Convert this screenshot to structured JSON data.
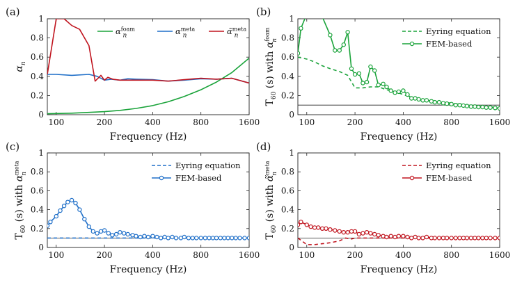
{
  "chart_data": [
    {
      "panel": "(a)",
      "type": "line",
      "xlabel": "Frequency (Hz)",
      "ylabel": {
        "base": "α",
        "sub": "n"
      },
      "xscale": "log",
      "xlim": [
        88,
        1600
      ],
      "ylim": [
        0,
        1
      ],
      "xticks": [
        {
          "v": 100,
          "label": "100"
        },
        {
          "v": 200,
          "label": "200"
        },
        {
          "v": 400,
          "label": "400"
        },
        {
          "v": 800,
          "label": "800"
        },
        {
          "v": 1600,
          "label": "1600"
        }
      ],
      "yticks": [
        {
          "v": 0,
          "label": "0"
        },
        {
          "v": 0.2,
          "label": "0.2"
        },
        {
          "v": 0.4,
          "label": "0.4"
        },
        {
          "v": 0.6,
          "label": "0.6"
        },
        {
          "v": 0.8,
          "label": "0.8"
        },
        {
          "v": 1,
          "label": "1"
        }
      ],
      "legend_position": "top",
      "series": [
        {
          "name": "alpha-foam",
          "label": {
            "base": "α",
            "sup": "foam",
            "sub": "n"
          },
          "color": "#1aa33a",
          "dash": false,
          "markers": false,
          "x": [
            88,
            100,
            125,
            160,
            200,
            250,
            315,
            400,
            500,
            630,
            800,
            1000,
            1250,
            1600
          ],
          "y": [
            0.01,
            0.012,
            0.016,
            0.024,
            0.032,
            0.045,
            0.065,
            0.095,
            0.135,
            0.19,
            0.26,
            0.34,
            0.44,
            0.59
          ]
        },
        {
          "name": "alpha-meta",
          "label": {
            "base": "α",
            "sup": "meta",
            "sub": "n"
          },
          "color": "#1f6fc8",
          "dash": false,
          "markers": false,
          "x": [
            88,
            100,
            125,
            160,
            180,
            200,
            220,
            250,
            280,
            315,
            400,
            500,
            630,
            800,
            1000,
            1250,
            1600
          ],
          "y": [
            0.42,
            0.42,
            0.41,
            0.42,
            0.4,
            0.36,
            0.37,
            0.36,
            0.375,
            0.37,
            0.365,
            0.35,
            0.36,
            0.375,
            0.37,
            0.38,
            0.33
          ]
        },
        {
          "name": "alpha-tilde-meta",
          "label": {
            "base": "α̃",
            "sup": "meta",
            "sub": "n"
          },
          "color": "#c0141e",
          "dash": false,
          "markers": false,
          "x": [
            88,
            100,
            112,
            125,
            140,
            160,
            175,
            190,
            200,
            210,
            225,
            250,
            280,
            315,
            400,
            500,
            630,
            800,
            1000,
            1250,
            1600
          ],
          "y": [
            0.42,
            1.0,
            1.0,
            0.93,
            0.89,
            0.72,
            0.35,
            0.41,
            0.36,
            0.39,
            0.37,
            0.36,
            0.36,
            0.36,
            0.36,
            0.35,
            0.365,
            0.38,
            0.37,
            0.38,
            0.33
          ]
        }
      ]
    },
    {
      "panel": "(b)",
      "type": "line",
      "xlabel": "Frequency (Hz)",
      "ylabel": {
        "pre": "T",
        "pre_sub": "60",
        "mid": " (s) with ",
        "base": "α",
        "sup": "foam",
        "sub": "n"
      },
      "xscale": "log",
      "xlim": [
        88,
        1600
      ],
      "ylim": [
        0,
        1
      ],
      "xticks": [
        {
          "v": 100,
          "label": "100"
        },
        {
          "v": 200,
          "label": "200"
        },
        {
          "v": 400,
          "label": "400"
        },
        {
          "v": 800,
          "label": "800"
        },
        {
          "v": 1600,
          "label": "1600"
        }
      ],
      "yticks": [
        {
          "v": 0,
          "label": "0"
        },
        {
          "v": 0.2,
          "label": "0.2"
        },
        {
          "v": 0.4,
          "label": "0.4"
        },
        {
          "v": 0.6,
          "label": "0.6"
        },
        {
          "v": 0.8,
          "label": "0.8"
        },
        {
          "v": 1,
          "label": "1"
        }
      ],
      "reference_line": 0.1,
      "legend_position": "top-right",
      "series": [
        {
          "name": "eyring",
          "label": {
            "text": "Eyring equation"
          },
          "color": "#1aa33a",
          "dash": true,
          "markers": false,
          "x": [
            88,
            100,
            112,
            125,
            140,
            160,
            180,
            200,
            224,
            250,
            280,
            315,
            355,
            400,
            450,
            500,
            560,
            630,
            710,
            800,
            900,
            1000,
            1120,
            1250,
            1400,
            1600
          ],
          "y": [
            0.6,
            0.58,
            0.55,
            0.51,
            0.48,
            0.45,
            0.41,
            0.28,
            0.28,
            0.29,
            0.29,
            0.26,
            0.24,
            0.21,
            0.18,
            0.16,
            0.15,
            0.14,
            0.13,
            0.12,
            0.11,
            0.1,
            0.09,
            0.085,
            0.08,
            0.075
          ]
        },
        {
          "name": "fem",
          "label": {
            "text": "FEM-based"
          },
          "color": "#1aa33a",
          "dash": false,
          "markers": true,
          "x": [
            88,
            92,
            100,
            112,
            125,
            140,
            150,
            160,
            170,
            180,
            190,
            200,
            212,
            224,
            237,
            250,
            265,
            280,
            300,
            315,
            335,
            355,
            375,
            400,
            425,
            450,
            475,
            500,
            530,
            560,
            600,
            630,
            670,
            710,
            750,
            800,
            850,
            900,
            950,
            1000,
            1060,
            1120,
            1180,
            1250,
            1320,
            1400,
            1500,
            1600
          ],
          "y": [
            0.64,
            0.9,
            1.05,
            1.05,
            1.02,
            0.83,
            0.67,
            0.67,
            0.73,
            0.86,
            0.48,
            0.42,
            0.43,
            0.33,
            0.34,
            0.5,
            0.46,
            0.31,
            0.32,
            0.29,
            0.25,
            0.23,
            0.24,
            0.25,
            0.21,
            0.17,
            0.17,
            0.16,
            0.15,
            0.15,
            0.14,
            0.13,
            0.13,
            0.12,
            0.115,
            0.11,
            0.1,
            0.1,
            0.095,
            0.09,
            0.085,
            0.085,
            0.08,
            0.08,
            0.075,
            0.075,
            0.07,
            0.065
          ]
        }
      ]
    },
    {
      "panel": "(c)",
      "type": "line",
      "xlabel": "Frequency (Hz)",
      "ylabel": {
        "pre": "T",
        "pre_sub": "60",
        "mid": " (s) with ",
        "base": "α",
        "sup": "meta",
        "sub": "n"
      },
      "xscale": "log",
      "xlim": [
        88,
        1600
      ],
      "ylim": [
        0,
        1
      ],
      "xticks": [
        {
          "v": 100,
          "label": "100"
        },
        {
          "v": 200,
          "label": "200"
        },
        {
          "v": 400,
          "label": "400"
        },
        {
          "v": 800,
          "label": "800"
        },
        {
          "v": 1600,
          "label": "1600"
        }
      ],
      "yticks": [
        {
          "v": 0,
          "label": "0"
        },
        {
          "v": 0.2,
          "label": "0.2"
        },
        {
          "v": 0.4,
          "label": "0.4"
        },
        {
          "v": 0.6,
          "label": "0.6"
        },
        {
          "v": 0.8,
          "label": "0.8"
        },
        {
          "v": 1,
          "label": "1"
        }
      ],
      "reference_line": 0.1,
      "legend_position": "top-right",
      "series": [
        {
          "name": "eyring",
          "label": {
            "text": "Eyring equation"
          },
          "color": "#1f6fc8",
          "dash": true,
          "markers": false,
          "x": [
            88,
            100,
            200,
            400,
            800,
            1600
          ],
          "y": [
            0.1,
            0.1,
            0.1,
            0.1,
            0.1,
            0.1
          ]
        },
        {
          "name": "fem",
          "label": {
            "text": "FEM-based"
          },
          "color": "#1f6fc8",
          "dash": false,
          "markers": true,
          "x": [
            88,
            92,
            100,
            106,
            112,
            118,
            125,
            132,
            140,
            150,
            160,
            170,
            180,
            190,
            200,
            212,
            224,
            237,
            250,
            265,
            280,
            300,
            315,
            335,
            355,
            375,
            400,
            425,
            450,
            475,
            500,
            530,
            560,
            600,
            630,
            670,
            710,
            750,
            800,
            850,
            900,
            950,
            1000,
            1060,
            1120,
            1180,
            1250,
            1320,
            1400,
            1500,
            1600
          ],
          "y": [
            0.23,
            0.27,
            0.33,
            0.39,
            0.44,
            0.48,
            0.5,
            0.47,
            0.4,
            0.3,
            0.22,
            0.17,
            0.15,
            0.17,
            0.18,
            0.15,
            0.13,
            0.14,
            0.16,
            0.15,
            0.14,
            0.13,
            0.12,
            0.11,
            0.12,
            0.11,
            0.12,
            0.11,
            0.1,
            0.11,
            0.1,
            0.11,
            0.1,
            0.1,
            0.11,
            0.1,
            0.1,
            0.1,
            0.1,
            0.1,
            0.1,
            0.1,
            0.1,
            0.1,
            0.1,
            0.1,
            0.1,
            0.1,
            0.1,
            0.1,
            0.1
          ]
        }
      ]
    },
    {
      "panel": "(d)",
      "type": "line",
      "xlabel": "Frequency (Hz)",
      "ylabel": {
        "pre": "T",
        "pre_sub": "60",
        "mid": " (s) with ",
        "base": "α̃",
        "sup": "meta",
        "sub": "n"
      },
      "xscale": "log",
      "xlim": [
        88,
        1600
      ],
      "ylim": [
        0,
        1
      ],
      "xticks": [
        {
          "v": 100,
          "label": "100"
        },
        {
          "v": 200,
          "label": "200"
        },
        {
          "v": 400,
          "label": "400"
        },
        {
          "v": 800,
          "label": "800"
        },
        {
          "v": 1600,
          "label": "1600"
        }
      ],
      "yticks": [
        {
          "v": 0,
          "label": "0"
        },
        {
          "v": 0.2,
          "label": "0.2"
        },
        {
          "v": 0.4,
          "label": "0.4"
        },
        {
          "v": 0.6,
          "label": "0.6"
        },
        {
          "v": 0.8,
          "label": "0.8"
        },
        {
          "v": 1,
          "label": "1"
        }
      ],
      "reference_line": 0.1,
      "legend_position": "top-right",
      "series": [
        {
          "name": "eyring",
          "label": {
            "text": "Eyring equation"
          },
          "color": "#c0141e",
          "dash": true,
          "markers": false,
          "x": [
            88,
            100,
            112,
            125,
            140,
            160,
            175,
            190,
            200,
            224,
            250,
            315,
            400,
            500,
            630,
            800,
            1000,
            1250,
            1600
          ],
          "y": [
            0.1,
            0.03,
            0.03,
            0.04,
            0.05,
            0.07,
            0.1,
            0.09,
            0.1,
            0.1,
            0.1,
            0.1,
            0.1,
            0.1,
            0.1,
            0.1,
            0.1,
            0.1,
            0.1
          ]
        },
        {
          "name": "fem",
          "label": {
            "text": "FEM-based"
          },
          "color": "#c0141e",
          "dash": false,
          "markers": true,
          "x": [
            88,
            92,
            100,
            106,
            112,
            118,
            125,
            132,
            140,
            150,
            160,
            170,
            180,
            190,
            200,
            212,
            224,
            237,
            250,
            265,
            280,
            300,
            315,
            335,
            355,
            375,
            400,
            425,
            450,
            475,
            500,
            530,
            560,
            600,
            630,
            670,
            710,
            750,
            800,
            850,
            900,
            950,
            1000,
            1060,
            1120,
            1180,
            1250,
            1320,
            1400,
            1500,
            1600
          ],
          "y": [
            0.24,
            0.27,
            0.24,
            0.22,
            0.21,
            0.21,
            0.2,
            0.2,
            0.19,
            0.18,
            0.17,
            0.16,
            0.16,
            0.17,
            0.17,
            0.14,
            0.15,
            0.16,
            0.15,
            0.14,
            0.13,
            0.12,
            0.11,
            0.12,
            0.11,
            0.12,
            0.12,
            0.11,
            0.1,
            0.11,
            0.1,
            0.1,
            0.11,
            0.1,
            0.1,
            0.1,
            0.1,
            0.1,
            0.1,
            0.1,
            0.1,
            0.1,
            0.1,
            0.1,
            0.1,
            0.1,
            0.1,
            0.1,
            0.1,
            0.1,
            0.1
          ]
        }
      ]
    }
  ]
}
